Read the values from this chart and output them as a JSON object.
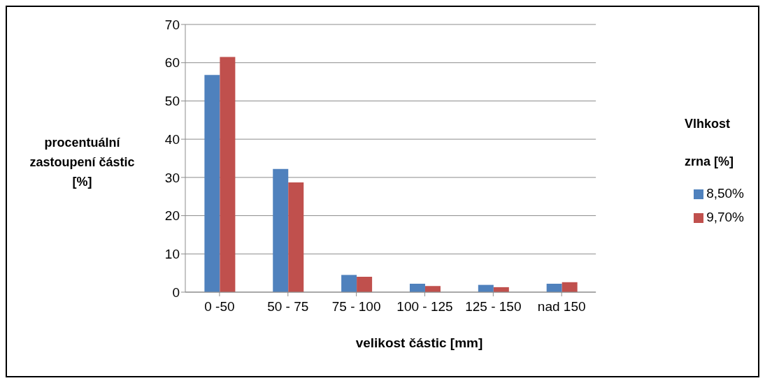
{
  "chart_data": {
    "type": "bar",
    "categories": [
      "0 -50",
      "50 - 75",
      "75 - 100",
      "100 - 125",
      "125 - 150",
      "nad 150"
    ],
    "xlabel": "velikost částic [mm]",
    "ylabel": "procentuální zastoupení částic [%]",
    "legend_title": "Vlhkost zrna [%]",
    "series": [
      {
        "name": "8,50%",
        "color": "#4f81bd",
        "values": [
          56.8,
          32.2,
          4.5,
          2.2,
          1.9,
          2.2
        ]
      },
      {
        "name": "9,70%",
        "color": "#c0504d",
        "values": [
          61.5,
          28.7,
          4.0,
          1.6,
          1.3,
          2.6
        ]
      }
    ],
    "ylim": [
      0,
      70
    ],
    "yticks": [
      0,
      10,
      20,
      30,
      40,
      50,
      60,
      70
    ],
    "grid": "y",
    "legend": "right"
  }
}
